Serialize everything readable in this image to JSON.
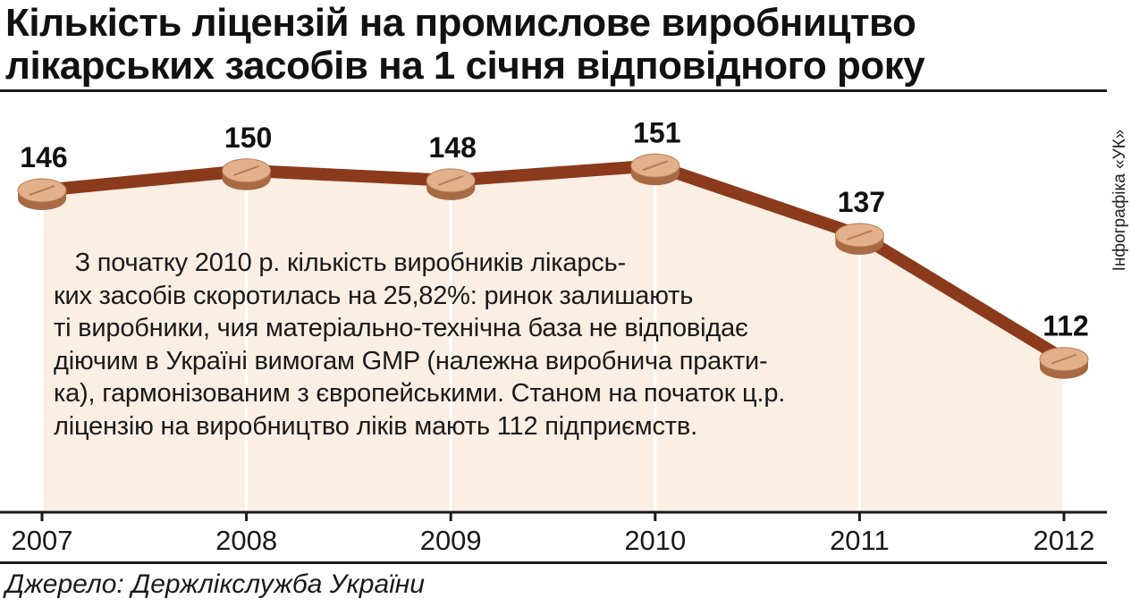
{
  "header": {
    "title_line1": "Кількість ліцензій на промислове виробництво",
    "title_line2": "лікарських засобів на 1 січня відповідного року"
  },
  "credit": "Інфографіка «УК»",
  "note_lines": [
    "   З початку 2010 р. кількість виробників лікарсь-",
    "ких засобів скоротилась на 25,82%: ринок залишають",
    "ті виробники, чия матеріально-технічна база не відповідає",
    "діючим в Україні вимогам GMP (належна виробнича практи-",
    "ка), гармонізованим з європейськими. Станом на початок ц.р.",
    "ліцензію на виробництво ліків мають 112 підприємств."
  ],
  "source": "Джерело: Держлікслужба України",
  "colors": {
    "line": "#8b3a1c",
    "area": "#fbeee3",
    "pill": "#e2b08a",
    "pill_shadow": "#a86a44"
  },
  "chart_data": {
    "type": "line",
    "title": "Кількість ліцензій на промислове виробництво лікарських засобів на 1 січня відповідного року",
    "xlabel": "",
    "ylabel": "",
    "categories": [
      "2007",
      "2008",
      "2009",
      "2010",
      "2011",
      "2012"
    ],
    "series": [
      {
        "values": [
          146,
          150,
          148,
          151,
          137,
          112
        ]
      }
    ],
    "grid": true,
    "marker": "pill-icon"
  }
}
